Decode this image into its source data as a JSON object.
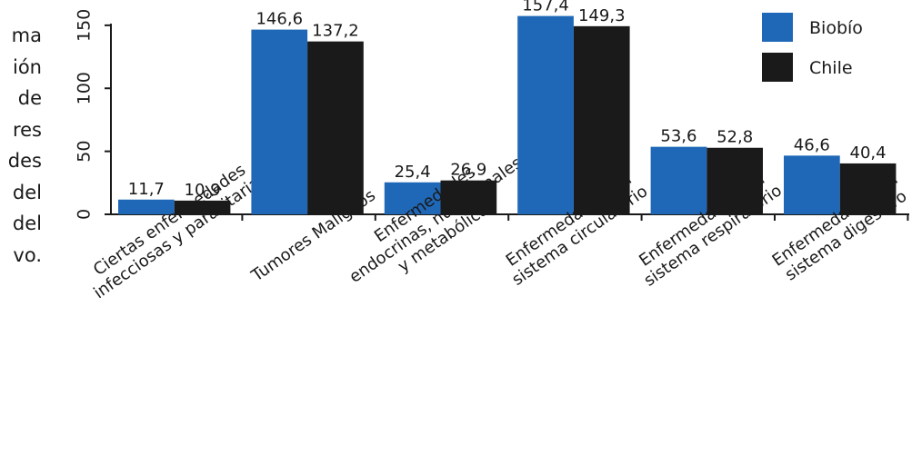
{
  "body_text_fragments": [
    "ma",
    "ión",
    "de",
    "res",
    "des",
    "del",
    "del",
    "vo."
  ],
  "chart_data": {
    "type": "bar",
    "categories": [
      [
        "Ciertas enfermedades",
        "infecciosas y parasitarias"
      ],
      [
        "Tumores Malignos"
      ],
      [
        "Enfermedades",
        "endocrinas, nutricionales",
        "y metabólicas"
      ],
      [
        "Enfermedades del",
        "sistema circulatorio"
      ],
      [
        "Enfermedades del",
        "sistema respiratorio"
      ],
      [
        "Enfermedades del",
        "sistema digestivo"
      ]
    ],
    "series": [
      {
        "name": "Biobío",
        "color": "#1f68b8",
        "values": [
          11.7,
          146.6,
          25.4,
          157.4,
          53.6,
          46.6
        ],
        "labels": [
          "11,7",
          "146,6",
          "25,4",
          "157,4",
          "53,6",
          "46,6"
        ]
      },
      {
        "name": "Chile",
        "color": "#1a1a1a",
        "values": [
          10.9,
          137.2,
          26.9,
          149.3,
          52.8,
          40.4
        ],
        "labels": [
          "10,9",
          "137,2",
          "26,9",
          "149,3",
          "52,8",
          "40,4"
        ]
      }
    ],
    "yticks": [
      0,
      50,
      100,
      150
    ],
    "ylim": [
      0,
      160
    ],
    "grid": false,
    "legend_position": "top-right"
  }
}
